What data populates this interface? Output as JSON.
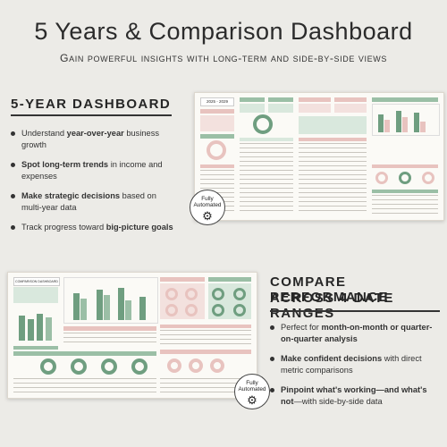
{
  "header": {
    "title": "5 Years & Comparison Dashboard",
    "subtitle": "Gain powerful insights with long-term and side-by-side views"
  },
  "five_year": {
    "heading": "5-YEAR DASHBOARD",
    "bullets": [
      {
        "pre": "Understand ",
        "bold": "year-over-year",
        "post": " business growth"
      },
      {
        "pre": "",
        "bold": "Spot long-term trends",
        "post": " in income and expenses"
      },
      {
        "pre": "",
        "bold": "Make strategic decisions",
        "post": " based on multi-year data"
      },
      {
        "pre": "Track progress toward ",
        "bold": "big-picture goals",
        "post": ""
      }
    ],
    "dashboard_label": "2025 - 2029",
    "badge": {
      "line1": "Fully",
      "line2": "Automated",
      "icon": "gear-icon"
    }
  },
  "compare": {
    "heading_line1": "COMPARE PERFORMANCE",
    "heading_line2": "ACROSS 4 DATE RANGES",
    "bullets": [
      {
        "pre": "Perfect for ",
        "bold": "month-on-month or quarter-on-quarter analysis",
        "post": ""
      },
      {
        "pre": "",
        "bold": "Make confident decisions",
        "post": " with direct metric comparisons"
      },
      {
        "pre": "",
        "bold": "Pinpoint what's working—and what's not",
        "post": "—with side-by-side data"
      }
    ],
    "dashboard_label": "COMPARISON DASHBOARD",
    "badge": {
      "line1": "Fully",
      "line2": "Automated",
      "icon": "gear-icon"
    }
  },
  "colors": {
    "pink": "#e8c3bf",
    "green": "#9bbfa6",
    "green_dark": "#6f9e80",
    "background": "#ecebe7"
  }
}
